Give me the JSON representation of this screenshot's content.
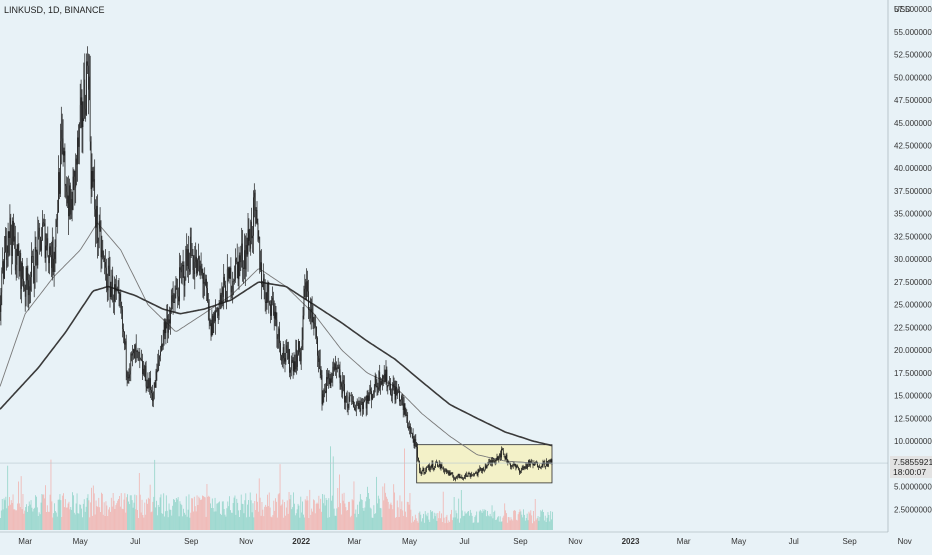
{
  "header": {
    "title": "LINKUSD, 1D, BINANCE"
  },
  "chart_data": {
    "type": "candlestick",
    "symbol": "LINKUSD",
    "timeframe": "1D",
    "exchange": "BINANCE",
    "currency_label": "USD",
    "ylim": [
      0,
      58.5
    ],
    "y_ticks": [
      "2.5000000",
      "5.0000000",
      "7.5000000",
      "10.0000000",
      "12.5000000",
      "15.0000000",
      "17.5000000",
      "20.0000000",
      "22.5000000",
      "25.0000000",
      "27.5000000",
      "30.0000000",
      "32.5000000",
      "35.0000000",
      "37.5000000",
      "40.0000000",
      "42.5000000",
      "45.0000000",
      "47.5000000",
      "50.0000000",
      "52.5000000",
      "55.0000000",
      "57.5000000"
    ],
    "x_ticks": [
      "Mar",
      "May",
      "Jul",
      "Sep",
      "Nov",
      "2022",
      "Mar",
      "May",
      "Jul",
      "Sep",
      "Nov",
      "2023",
      "Mar",
      "May",
      "Jul",
      "Sep",
      "Nov"
    ],
    "price_anchors": [
      [
        "2021-02-01",
        25.0
      ],
      [
        "2021-02-10",
        34.0
      ],
      [
        "2021-02-20",
        30.0
      ],
      [
        "2021-03-01",
        27.0
      ],
      [
        "2021-03-10",
        29.0
      ],
      [
        "2021-03-20",
        33.0
      ],
      [
        "2021-04-01",
        30.0
      ],
      [
        "2021-04-10",
        42.0
      ],
      [
        "2021-04-20",
        35.0
      ],
      [
        "2021-05-01",
        44.0
      ],
      [
        "2021-05-10",
        52.0
      ],
      [
        "2021-05-13",
        40.0
      ],
      [
        "2021-05-20",
        33.0
      ],
      [
        "2021-05-30",
        28.0
      ],
      [
        "2021-06-05",
        27.0
      ],
      [
        "2021-06-15",
        24.0
      ],
      [
        "2021-06-22",
        18.0
      ],
      [
        "2021-07-01",
        19.5
      ],
      [
        "2021-07-15",
        16.5
      ],
      [
        "2021-07-21",
        15.0
      ],
      [
        "2021-08-01",
        22.0
      ],
      [
        "2021-08-15",
        26.0
      ],
      [
        "2021-08-31",
        31.0
      ],
      [
        "2021-09-07",
        29.0
      ],
      [
        "2021-09-15",
        28.0
      ],
      [
        "2021-09-22",
        22.0
      ],
      [
        "2021-10-01",
        25.0
      ],
      [
        "2021-10-10",
        27.0
      ],
      [
        "2021-10-20",
        29.0
      ],
      [
        "2021-11-01",
        31.0
      ],
      [
        "2021-11-10",
        35.0
      ],
      [
        "2021-11-20",
        27.0
      ],
      [
        "2021-12-01",
        25.0
      ],
      [
        "2021-12-10",
        20.0
      ],
      [
        "2021-12-20",
        18.5
      ],
      [
        "2022-01-01",
        20.0
      ],
      [
        "2022-01-05",
        27.0
      ],
      [
        "2022-01-10",
        25.0
      ],
      [
        "2022-01-20",
        20.0
      ],
      [
        "2022-01-24",
        15.0
      ],
      [
        "2022-02-01",
        17.0
      ],
      [
        "2022-02-10",
        17.5
      ],
      [
        "2022-02-20",
        14.5
      ],
      [
        "2022-03-01",
        14.0
      ],
      [
        "2022-03-15",
        14.5
      ],
      [
        "2022-04-01",
        17.5
      ],
      [
        "2022-04-10",
        16.0
      ],
      [
        "2022-04-20",
        15.0
      ],
      [
        "2022-05-01",
        11.5
      ],
      [
        "2022-05-09",
        9.0
      ],
      [
        "2022-05-12",
        6.5
      ],
      [
        "2022-05-20",
        7.0
      ],
      [
        "2022-06-01",
        7.5
      ],
      [
        "2022-06-13",
        6.5
      ],
      [
        "2022-06-18",
        6.0
      ],
      [
        "2022-07-01",
        6.2
      ],
      [
        "2022-07-15",
        6.5
      ],
      [
        "2022-08-01",
        7.8
      ],
      [
        "2022-08-12",
        8.8
      ],
      [
        "2022-08-20",
        7.5
      ],
      [
        "2022-09-01",
        6.8
      ],
      [
        "2022-09-10",
        7.5
      ],
      [
        "2022-09-20",
        7.4
      ],
      [
        "2022-10-01",
        7.6
      ],
      [
        "2022-10-06",
        7.6
      ]
    ],
    "ma_fast_anchors": [
      [
        "2021-02-01",
        16.0
      ],
      [
        "2021-03-01",
        24.0
      ],
      [
        "2021-04-01",
        28.0
      ],
      [
        "2021-05-01",
        31.0
      ],
      [
        "2021-05-20",
        34.0
      ],
      [
        "2021-06-15",
        31.0
      ],
      [
        "2021-07-15",
        25.0
      ],
      [
        "2021-08-15",
        22.0
      ],
      [
        "2021-09-15",
        24.0
      ],
      [
        "2021-10-15",
        26.0
      ],
      [
        "2021-11-15",
        29.0
      ],
      [
        "2021-12-15",
        27.0
      ],
      [
        "2022-01-15",
        24.0
      ],
      [
        "2022-02-15",
        20.0
      ],
      [
        "2022-03-15",
        17.5
      ],
      [
        "2022-04-15",
        16.0
      ],
      [
        "2022-05-15",
        13.0
      ],
      [
        "2022-06-15",
        10.5
      ],
      [
        "2022-07-15",
        8.5
      ],
      [
        "2022-08-15",
        7.8
      ],
      [
        "2022-09-15",
        7.6
      ],
      [
        "2022-10-06",
        7.5
      ]
    ],
    "ma_slow_anchors": [
      [
        "2021-02-01",
        13.5
      ],
      [
        "2021-03-15",
        18.0
      ],
      [
        "2021-04-15",
        22.0
      ],
      [
        "2021-05-15",
        26.5
      ],
      [
        "2021-06-01",
        27.0
      ],
      [
        "2021-07-01",
        26.0
      ],
      [
        "2021-08-01",
        24.5
      ],
      [
        "2021-08-20",
        24.0
      ],
      [
        "2021-09-15",
        24.5
      ],
      [
        "2021-10-15",
        25.5
      ],
      [
        "2021-11-15",
        27.5
      ],
      [
        "2021-12-15",
        27.0
      ],
      [
        "2022-01-15",
        25.0
      ],
      [
        "2022-02-15",
        23.0
      ],
      [
        "2022-03-15",
        21.0
      ],
      [
        "2022-04-15",
        19.0
      ],
      [
        "2022-05-15",
        16.5
      ],
      [
        "2022-06-15",
        14.0
      ],
      [
        "2022-07-15",
        12.5
      ],
      [
        "2022-08-15",
        11.0
      ],
      [
        "2022-09-15",
        10.0
      ],
      [
        "2022-10-06",
        9.5
      ]
    ],
    "range_box": {
      "start": "2022-05-09",
      "end": "2022-10-06",
      "top": 9.6,
      "bottom": 5.4
    },
    "current_price": {
      "value": "7.5855921",
      "countdown": "18:00:07"
    },
    "colors": {
      "background": "#e8f2f7",
      "candle": "#1a1a1a",
      "ma_fast": "#7a7a7a",
      "ma_slow": "#3a3a3a",
      "volume_up": "#8fd4c8",
      "volume_down": "#f1b1ad",
      "box_fill": "#f3f1c8",
      "box_stroke": "#2a2a2a",
      "price_label_bg": "#e3e3e3",
      "axis_text": "#333333"
    }
  }
}
